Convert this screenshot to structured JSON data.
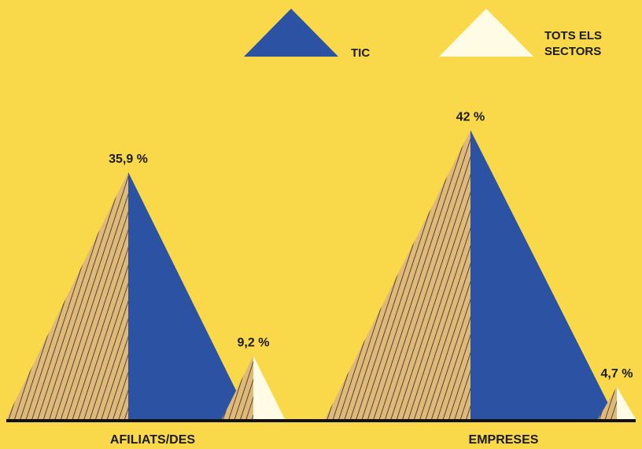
{
  "colors": {
    "background": "#F9D94A",
    "tic": "#2B52A3",
    "all_sectors": "#FFFBE4",
    "hatch_base": "#E0B877",
    "hatch_line": "#2b2b2b",
    "baseline": "#111111"
  },
  "legend": [
    {
      "label_lines": [
        "TIC"
      ],
      "color": "#2B52A3"
    },
    {
      "label_lines": [
        "TOTS ELS",
        "SECTORS"
      ],
      "color": "#FFFBE4"
    }
  ],
  "chart_data": {
    "type": "bar",
    "title": "",
    "categories": [
      "AFILIATS/DES",
      "EMPRESES"
    ],
    "series": [
      {
        "name": "TIC",
        "values": [
          35.9,
          42
        ],
        "labels": [
          "35,9 %",
          "42 %"
        ]
      },
      {
        "name": "TOTS ELS SECTORS",
        "values": [
          9.2,
          4.7
        ],
        "labels": [
          "9,2 %",
          "4,7 %"
        ]
      }
    ],
    "unit": "%",
    "legend_position": "top-right",
    "grid": false
  }
}
